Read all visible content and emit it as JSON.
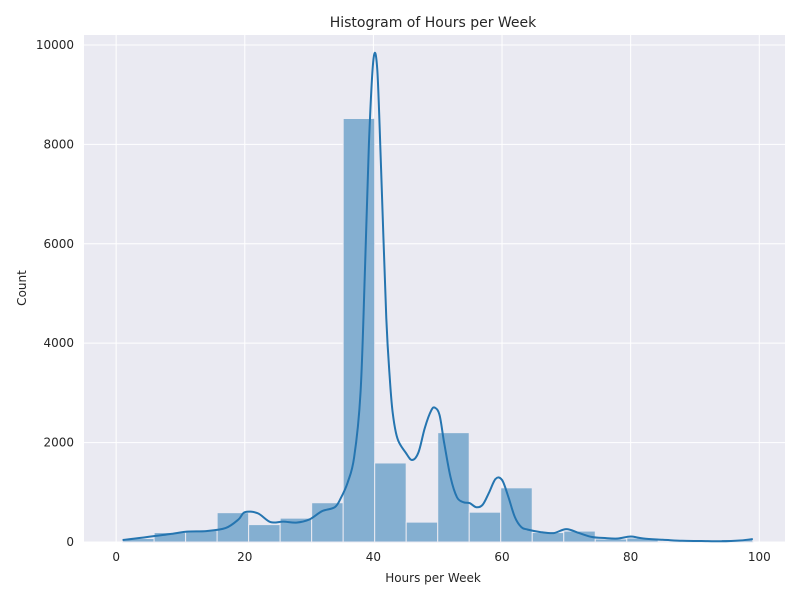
{
  "chart_data": {
    "type": "bar",
    "title": "Histogram of Hours per Week",
    "xlabel": "Hours per Week",
    "ylabel": "Count",
    "xlim": [
      -5,
      104
    ],
    "ylim": [
      0,
      10200
    ],
    "xticks": [
      0,
      20,
      40,
      60,
      80,
      100
    ],
    "yticks": [
      0,
      2000,
      4000,
      6000,
      8000,
      10000
    ],
    "grid": true,
    "bins": [
      {
        "start": 1.0,
        "end": 5.9,
        "count": 70
      },
      {
        "start": 5.9,
        "end": 10.8,
        "count": 190
      },
      {
        "start": 10.8,
        "end": 15.7,
        "count": 230
      },
      {
        "start": 15.7,
        "end": 20.6,
        "count": 590
      },
      {
        "start": 20.6,
        "end": 25.5,
        "count": 350
      },
      {
        "start": 25.5,
        "end": 30.4,
        "count": 480
      },
      {
        "start": 30.4,
        "end": 35.3,
        "count": 790
      },
      {
        "start": 35.3,
        "end": 40.2,
        "count": 8520
      },
      {
        "start": 40.2,
        "end": 45.1,
        "count": 1590
      },
      {
        "start": 45.1,
        "end": 50.0,
        "count": 400
      },
      {
        "start": 50.0,
        "end": 54.9,
        "count": 2200
      },
      {
        "start": 54.9,
        "end": 59.8,
        "count": 600
      },
      {
        "start": 59.8,
        "end": 64.7,
        "count": 1090
      },
      {
        "start": 64.7,
        "end": 69.6,
        "count": 190
      },
      {
        "start": 69.6,
        "end": 74.5,
        "count": 220
      },
      {
        "start": 74.5,
        "end": 79.4,
        "count": 60
      },
      {
        "start": 79.4,
        "end": 84.3,
        "count": 80
      },
      {
        "start": 84.3,
        "end": 89.2,
        "count": 20
      },
      {
        "start": 89.2,
        "end": 94.1,
        "count": 20
      },
      {
        "start": 94.1,
        "end": 99.0,
        "count": 50
      }
    ],
    "kde": {
      "x": [
        1,
        3,
        6,
        9,
        11,
        14,
        17,
        19,
        20,
        22,
        24,
        26,
        28,
        30,
        32,
        34,
        35,
        36,
        37,
        38,
        38.7,
        39.3,
        40,
        40.6,
        41.2,
        42,
        42.6,
        43,
        43.5,
        44,
        45,
        46,
        47,
        48,
        49,
        49.6,
        50.3,
        51,
        52,
        53,
        54,
        55,
        56,
        57,
        58,
        59,
        60,
        61,
        62,
        63,
        64,
        66,
        68,
        70,
        72,
        74,
        76,
        78,
        80,
        82,
        85,
        88,
        91,
        94,
        97,
        99
      ],
      "y": [
        40,
        70,
        120,
        170,
        210,
        220,
        280,
        450,
        600,
        580,
        400,
        410,
        390,
        450,
        620,
        700,
        900,
        1200,
        1700,
        3000,
        5500,
        8000,
        9700,
        9500,
        7500,
        4500,
        3200,
        2600,
        2200,
        2000,
        1800,
        1650,
        1800,
        2300,
        2650,
        2700,
        2550,
        2000,
        1300,
        900,
        800,
        780,
        700,
        750,
        1000,
        1270,
        1250,
        900,
        500,
        300,
        250,
        200,
        180,
        260,
        180,
        100,
        80,
        70,
        110,
        70,
        45,
        25,
        20,
        15,
        30,
        60
      ]
    },
    "colors": {
      "bar_fill": "#84afd1",
      "bar_edge": "#eaeaf2",
      "kde_line": "#2575b0",
      "axes_bg": "#eaeaf2",
      "grid": "#ffffff"
    }
  }
}
